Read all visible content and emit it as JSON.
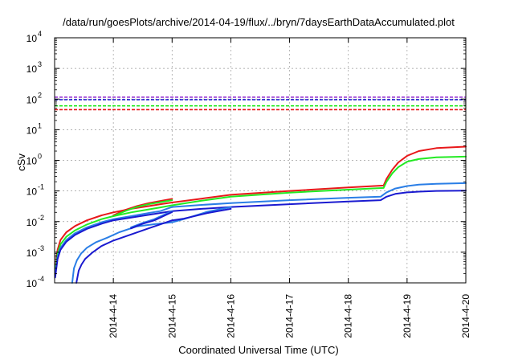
{
  "chart_data": {
    "type": "line",
    "title": "/data/run/goesPlots/archive/2014-04-19/flux/../bryn/7daysEarthDataAccumulated.plot",
    "xlabel": "Coordinated Universal Time (UTC)",
    "ylabel": "cSv",
    "y_scale": "log",
    "ylim": [
      0.0001,
      10000
    ],
    "y_ticks": [
      {
        "value": 0.0001,
        "base": "10",
        "exp": "-4"
      },
      {
        "value": 0.001,
        "base": "10",
        "exp": "-3"
      },
      {
        "value": 0.01,
        "base": "10",
        "exp": "-2"
      },
      {
        "value": 0.1,
        "base": "10",
        "exp": "-1"
      },
      {
        "value": 1,
        "base": "10",
        "exp": "0"
      },
      {
        "value": 10,
        "base": "10",
        "exp": "1"
      },
      {
        "value": 100,
        "base": "10",
        "exp": "2"
      },
      {
        "value": 1000,
        "base": "10",
        "exp": "3"
      },
      {
        "value": 10000,
        "base": "10",
        "exp": "4"
      }
    ],
    "x_start": "2014-04-13 00:00",
    "xlim": [
      "2014-04-13 00:00",
      "2014-04-20 00:00"
    ],
    "x_ticks": [
      "2014-4-14",
      "2014-4-15",
      "2014-4-16",
      "2014-4-17",
      "2014-4-18",
      "2014-4-19",
      "2014-4-20"
    ],
    "grid": true,
    "series": [
      {
        "color": "#e8181a",
        "points": [
          [
            0.01,
            0.0003
          ],
          [
            0.05,
            0.0012
          ],
          [
            0.1,
            0.0025
          ],
          [
            0.2,
            0.0045
          ],
          [
            0.35,
            0.0072
          ],
          [
            0.55,
            0.011
          ],
          [
            0.8,
            0.016
          ],
          [
            1.0,
            0.02
          ],
          [
            1.3,
            0.026
          ],
          [
            1.6,
            0.032
          ],
          [
            1.8,
            0.037
          ],
          [
            2.0,
            0.042
          ],
          [
            2.5,
            0.056
          ],
          [
            3.0,
            0.075
          ],
          [
            4.0,
            0.1
          ],
          [
            5.0,
            0.13
          ],
          [
            5.6,
            0.15
          ],
          [
            5.65,
            0.25
          ],
          [
            5.75,
            0.5
          ],
          [
            5.85,
            0.85
          ],
          [
            6.0,
            1.4
          ],
          [
            6.2,
            2.0
          ],
          [
            6.5,
            2.5
          ],
          [
            7.0,
            2.8
          ]
        ]
      },
      {
        "color": "#22ea22",
        "points": [
          [
            0.01,
            0.00025
          ],
          [
            0.05,
            0.0009
          ],
          [
            0.1,
            0.0018
          ],
          [
            0.2,
            0.0032
          ],
          [
            0.35,
            0.0052
          ],
          [
            0.55,
            0.008
          ],
          [
            0.8,
            0.012
          ],
          [
            1.0,
            0.015
          ],
          [
            1.3,
            0.02
          ],
          [
            1.6,
            0.025
          ],
          [
            1.8,
            0.029
          ],
          [
            2.0,
            0.034
          ],
          [
            2.5,
            0.048
          ],
          [
            3.0,
            0.065
          ],
          [
            4.0,
            0.088
          ],
          [
            5.0,
            0.11
          ],
          [
            5.6,
            0.125
          ],
          [
            5.65,
            0.2
          ],
          [
            5.75,
            0.38
          ],
          [
            5.85,
            0.6
          ],
          [
            6.0,
            0.9
          ],
          [
            6.2,
            1.1
          ],
          [
            6.5,
            1.25
          ],
          [
            7.0,
            1.32
          ]
        ]
      },
      {
        "color": "#2a7ee6",
        "points": [
          [
            0.01,
            0.0002
          ],
          [
            0.05,
            0.0007
          ],
          [
            0.1,
            0.0014
          ],
          [
            0.2,
            0.0025
          ],
          [
            0.35,
            0.0042
          ],
          [
            0.55,
            0.0065
          ],
          [
            0.8,
            0.0095
          ],
          [
            1.0,
            0.012
          ],
          [
            1.3,
            0.015
          ],
          [
            1.6,
            0.019
          ],
          [
            1.8,
            0.022
          ],
          [
            2.0,
            0.03
          ],
          [
            2.5,
            0.035
          ],
          [
            3.0,
            0.04
          ],
          [
            4.0,
            0.05
          ],
          [
            5.0,
            0.06
          ],
          [
            5.55,
            0.065
          ],
          [
            5.65,
            0.09
          ],
          [
            5.8,
            0.12
          ],
          [
            6.0,
            0.145
          ],
          [
            6.2,
            0.16
          ],
          [
            6.5,
            0.17
          ],
          [
            7.0,
            0.18
          ]
        ]
      },
      {
        "color": "#1a1ad0",
        "points": [
          [
            0.01,
            0.00015
          ],
          [
            0.05,
            0.0006
          ],
          [
            0.1,
            0.0012
          ],
          [
            0.2,
            0.0022
          ],
          [
            0.35,
            0.0037
          ],
          [
            0.55,
            0.0058
          ],
          [
            0.8,
            0.0085
          ],
          [
            1.0,
            0.011
          ],
          [
            2.0,
            0.022
          ],
          [
            2.5,
            0.026
          ],
          [
            3.0,
            0.03
          ],
          [
            4.0,
            0.037
          ],
          [
            5.0,
            0.045
          ],
          [
            5.55,
            0.05
          ],
          [
            5.65,
            0.065
          ],
          [
            5.8,
            0.08
          ],
          [
            6.0,
            0.09
          ],
          [
            6.2,
            0.095
          ],
          [
            6.5,
            0.1
          ],
          [
            7.0,
            0.102
          ]
        ]
      },
      {
        "color": "#e8181a",
        "points": [
          [
            1.0,
            0.016
          ],
          [
            1.2,
            0.024
          ],
          [
            1.4,
            0.032
          ],
          [
            1.6,
            0.04
          ],
          [
            1.8,
            0.047
          ],
          [
            2.0,
            0.055
          ]
        ]
      },
      {
        "color": "#22ea22",
        "points": [
          [
            1.0,
            0.015
          ],
          [
            1.2,
            0.022
          ],
          [
            1.4,
            0.03
          ],
          [
            1.6,
            0.037
          ],
          [
            1.8,
            0.043
          ],
          [
            2.0,
            0.05
          ]
        ]
      },
      {
        "color": "#2a7ee6",
        "points": [
          [
            0.3,
            0.0001
          ],
          [
            0.33,
            0.0003
          ],
          [
            0.38,
            0.00055
          ],
          [
            0.45,
            0.0009
          ],
          [
            0.55,
            0.0014
          ],
          [
            0.7,
            0.0021
          ],
          [
            0.9,
            0.003
          ],
          [
            1.1,
            0.0045
          ],
          [
            1.4,
            0.007
          ],
          [
            1.7,
            0.0082
          ],
          [
            2.0,
            0.0095
          ],
          [
            2.2,
            0.012
          ],
          [
            2.6,
            0.021
          ],
          [
            3.0,
            0.03
          ]
        ]
      },
      {
        "color": "#1a1ad0",
        "points": [
          [
            0.37,
            0.0001
          ],
          [
            0.41,
            0.00025
          ],
          [
            0.46,
            0.0004
          ],
          [
            0.52,
            0.0006
          ],
          [
            0.65,
            0.001
          ],
          [
            0.8,
            0.0016
          ],
          [
            1.0,
            0.0024
          ],
          [
            1.3,
            0.0038
          ],
          [
            1.6,
            0.006
          ],
          [
            2.0,
            0.011
          ],
          [
            2.2,
            0.0125
          ],
          [
            2.6,
            0.019
          ],
          [
            3.0,
            0.026
          ]
        ]
      },
      {
        "color": "#2a7ee6",
        "points": [
          [
            1.3,
            0.0065
          ],
          [
            1.5,
            0.009
          ],
          [
            1.7,
            0.012
          ],
          [
            2.0,
            0.022
          ]
        ]
      },
      {
        "color": "#1a1ad0",
        "points": [
          [
            1.3,
            0.006
          ],
          [
            1.5,
            0.0085
          ],
          [
            1.7,
            0.011
          ],
          [
            2.0,
            0.0205
          ]
        ]
      }
    ],
    "thresholds": [
      {
        "value": 115,
        "color": "#9b3ad0"
      },
      {
        "value": 95,
        "color": "#1a1ad0"
      },
      {
        "value": 60,
        "color": "#22ea22"
      },
      {
        "value": 45,
        "color": "#e8181a"
      }
    ]
  }
}
